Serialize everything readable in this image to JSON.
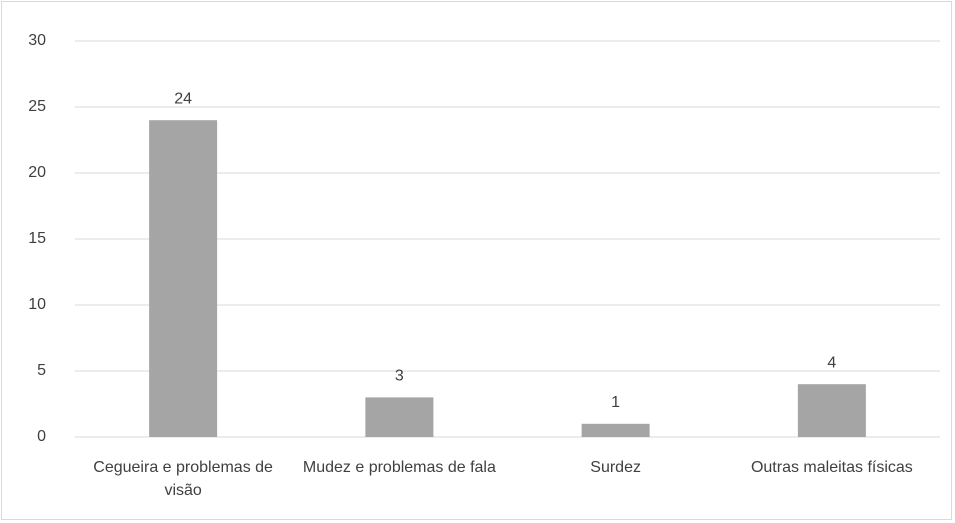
{
  "chart_data": {
    "type": "bar",
    "categories": [
      "Cegueira e problemas de visão",
      "Mudez e problemas de fala",
      "Surdez",
      "Outras maleitas físicas"
    ],
    "values": [
      24,
      3,
      1,
      4
    ],
    "color": "#a5a5a5",
    "ylim": [
      0,
      30
    ],
    "yticks": [
      0,
      5,
      10,
      15,
      20,
      25,
      30
    ],
    "grid": true
  }
}
